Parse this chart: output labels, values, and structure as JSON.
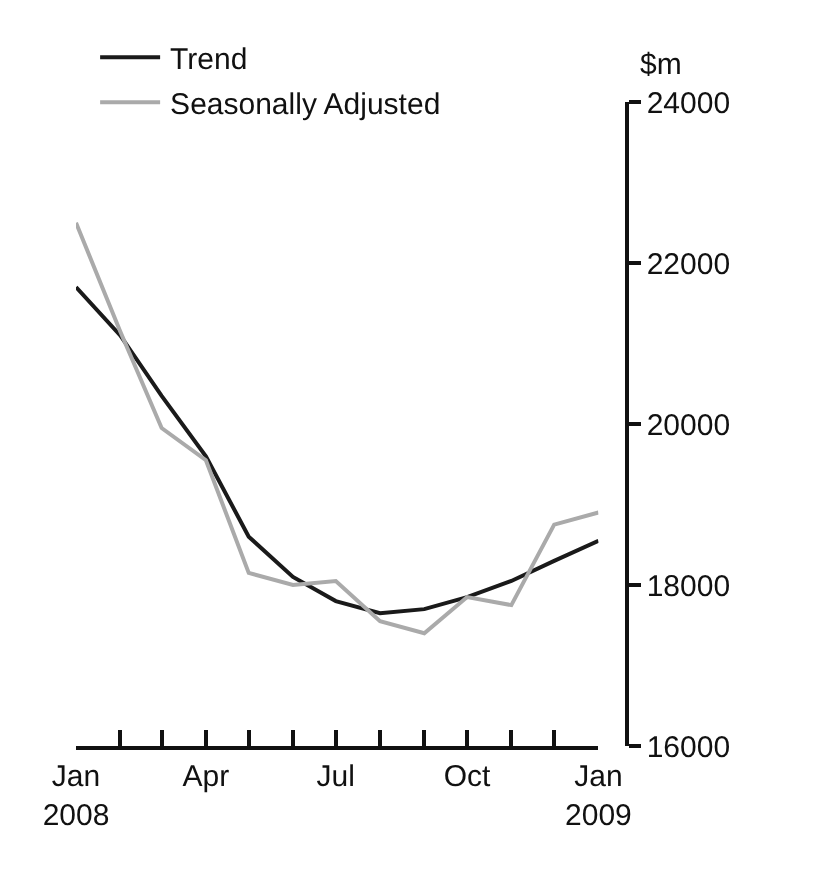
{
  "chart_data": {
    "type": "line",
    "ylabel": "$m",
    "x": [
      "2008-01",
      "2008-02",
      "2008-03",
      "2008-04",
      "2008-05",
      "2008-06",
      "2008-07",
      "2008-08",
      "2008-09",
      "2008-10",
      "2008-11",
      "2008-12",
      "2009-01"
    ],
    "series": [
      {
        "name": "Trend",
        "color": "#1a1a1a",
        "values": [
          21700,
          21100,
          20350,
          19600,
          18600,
          18100,
          17800,
          17650,
          17700,
          17850,
          18050,
          18300,
          18550
        ]
      },
      {
        "name": "Seasonally Adjusted",
        "color": "#aaaaaa",
        "values": [
          22500,
          21150,
          19950,
          19550,
          18150,
          18000,
          18050,
          17550,
          17400,
          17850,
          17750,
          18750,
          18900
        ]
      }
    ],
    "xlim": [
      "2008-01",
      "2009-01"
    ],
    "xticks": [
      {
        "value": "2008-01",
        "label": "Jan\n2008"
      },
      {
        "value": "2008-02",
        "label": null
      },
      {
        "value": "2008-03",
        "label": null
      },
      {
        "value": "2008-04",
        "label": "Apr"
      },
      {
        "value": "2008-05",
        "label": null
      },
      {
        "value": "2008-06",
        "label": null
      },
      {
        "value": "2008-07",
        "label": "Jul"
      },
      {
        "value": "2008-08",
        "label": null
      },
      {
        "value": "2008-09",
        "label": null
      },
      {
        "value": "2008-10",
        "label": "Oct"
      },
      {
        "value": "2008-11",
        "label": null
      },
      {
        "value": "2008-12",
        "label": null
      },
      {
        "value": "2009-01",
        "label": "Jan\n2009"
      }
    ],
    "ylim": [
      16000,
      24000
    ],
    "yticks": [
      16000,
      18000,
      20000,
      22000,
      24000
    ],
    "grid": false,
    "legend": "top left",
    "marker": "none",
    "line_style": "solid"
  }
}
